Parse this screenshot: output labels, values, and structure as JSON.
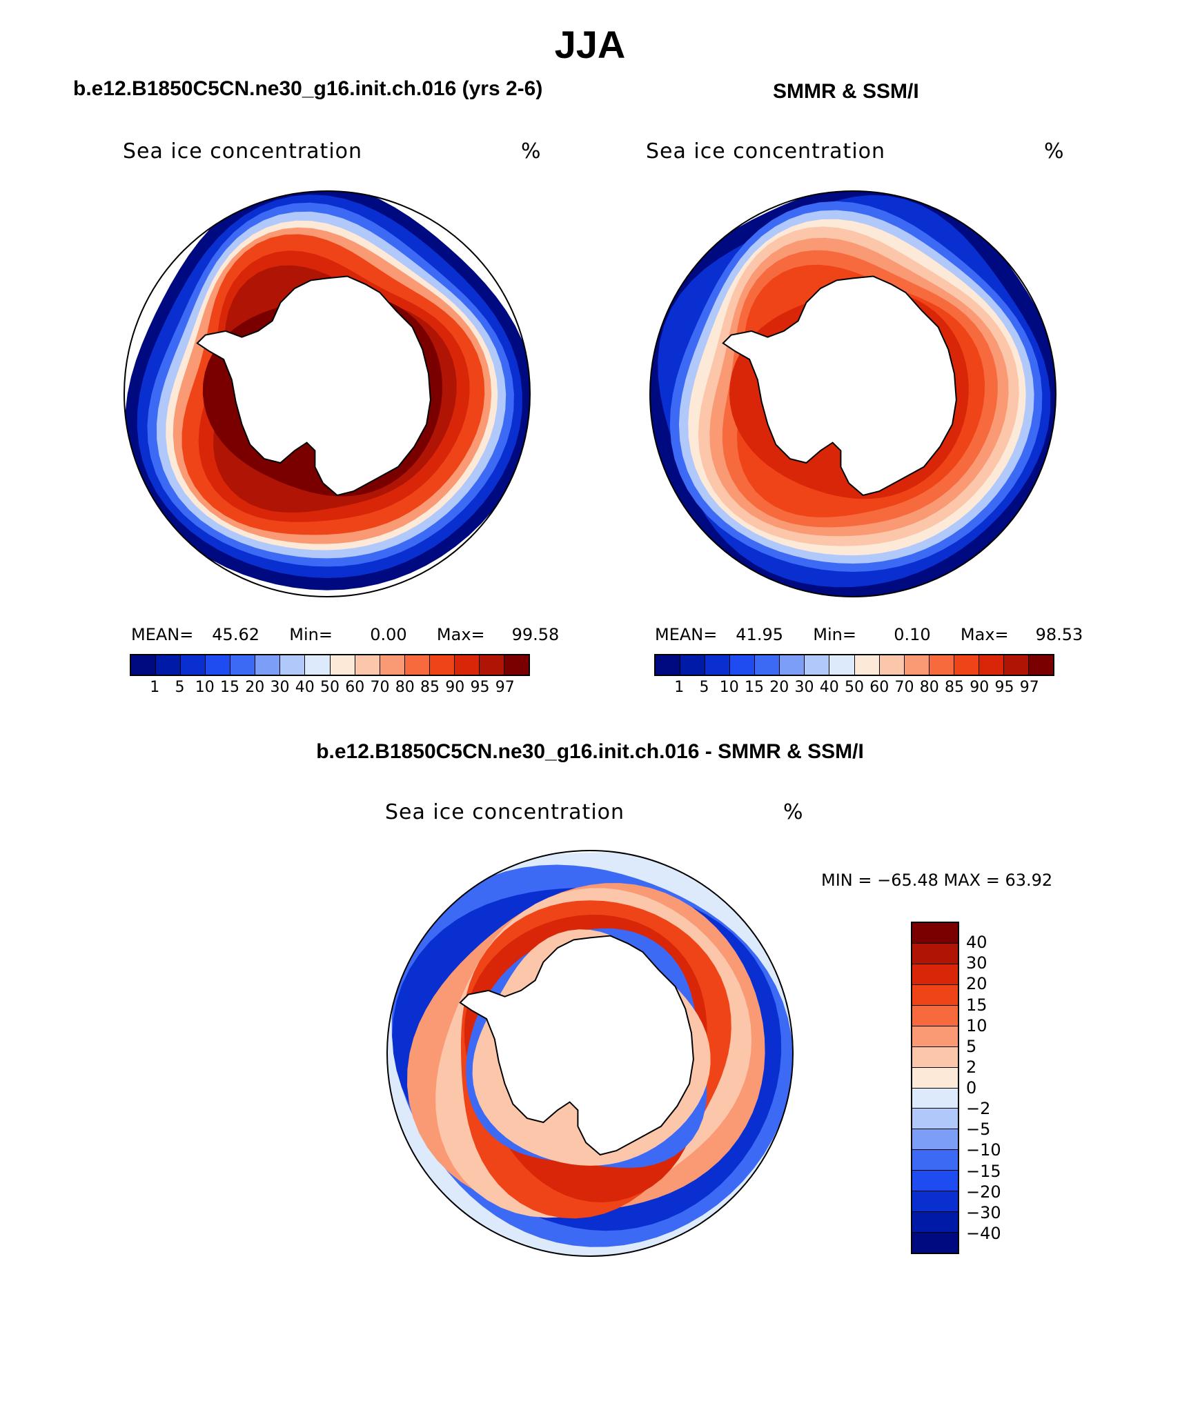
{
  "figure": {
    "title": "JJA"
  },
  "panels": [
    {
      "id": "model",
      "title": "b.e12.B1850C5CN.ne30_g16.init.ch.016 (yrs 2-6)",
      "variable": "Sea ice concentration",
      "units": "%",
      "stats": {
        "mean_label": "MEAN=",
        "mean": "45.62",
        "min_label": "Min=",
        "min": "0.00",
        "max_label": "Max=",
        "max": "99.58"
      }
    },
    {
      "id": "obs",
      "title": "SMMR & SSM/I",
      "variable": "Sea ice concentration",
      "units": "%",
      "stats": {
        "mean_label": "MEAN=",
        "mean": "41.95",
        "min_label": "Min=",
        "min": "0.10",
        "max_label": "Max=",
        "max": "98.53"
      }
    },
    {
      "id": "diff",
      "title": "b.e12.B1850C5CN.ne30_g16.init.ch.016 - SMMR & SSM/I",
      "variable": "Sea ice concentration",
      "units": "%",
      "minmax": "MIN = −65.48 MAX =   63.92"
    }
  ],
  "colorbars": {
    "concentration": {
      "ticks": [
        "1",
        "5",
        "10",
        "15",
        "20",
        "30",
        "40",
        "50",
        "60",
        "70",
        "80",
        "85",
        "90",
        "95",
        "97"
      ],
      "colors": [
        "#000a80",
        "#001aa8",
        "#0a2fd0",
        "#1e4cf0",
        "#3c6af5",
        "#7d9ef7",
        "#b0c8fa",
        "#dceafc",
        "#fde9d8",
        "#fcc6aa",
        "#f99a74",
        "#f66a3e",
        "#ef4418",
        "#d92608",
        "#b01404",
        "#7a0000"
      ]
    },
    "difference": {
      "ticks": [
        "40",
        "30",
        "20",
        "15",
        "10",
        "5",
        "2",
        "0",
        "−2",
        "−5",
        "−10",
        "−15",
        "−20",
        "−30",
        "−40"
      ],
      "colors": [
        "#7a0000",
        "#b01404",
        "#d92608",
        "#ef4418",
        "#f66a3e",
        "#f99a74",
        "#fcc6aa",
        "#fde9d8",
        "#dceafc",
        "#b0c8fa",
        "#7d9ef7",
        "#3c6af5",
        "#1e4cf0",
        "#0a2fd0",
        "#001aa8",
        "#000a80"
      ]
    }
  }
}
